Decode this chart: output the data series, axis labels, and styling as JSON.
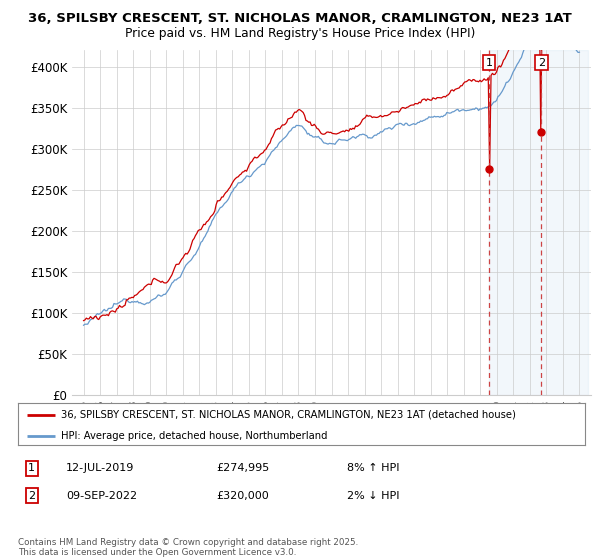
{
  "title_line1": "36, SPILSBY CRESCENT, ST. NICHOLAS MANOR, CRAMLINGTON, NE23 1AT",
  "title_line2": "Price paid vs. HM Land Registry's House Price Index (HPI)",
  "legend_label1": "36, SPILSBY CRESCENT, ST. NICHOLAS MANOR, CRAMLINGTON, NE23 1AT (detached house)",
  "legend_label2": "HPI: Average price, detached house, Northumberland",
  "annotation1_label": "1",
  "annotation1_date": "12-JUL-2019",
  "annotation1_price": "£274,995",
  "annotation1_hpi": "8% ↑ HPI",
  "annotation2_label": "2",
  "annotation2_date": "09-SEP-2022",
  "annotation2_price": "£320,000",
  "annotation2_hpi": "2% ↓ HPI",
  "footer": "Contains HM Land Registry data © Crown copyright and database right 2025.\nThis data is licensed under the Open Government Licence v3.0.",
  "line1_color": "#cc0000",
  "line2_color": "#6699cc",
  "annotation_box_color": "#cc0000",
  "shaded_region_color": "#ddeeff",
  "ylim": [
    0,
    420000
  ],
  "yticks": [
    0,
    50000,
    100000,
    150000,
    200000,
    250000,
    300000,
    350000,
    400000
  ],
  "ytick_labels": [
    "£0",
    "£50K",
    "£100K",
    "£150K",
    "£200K",
    "£250K",
    "£300K",
    "£350K",
    "£400K"
  ],
  "ann1_year": 2019.54,
  "ann2_year": 2022.7,
  "ann1_value": 274995,
  "ann2_value": 320000
}
